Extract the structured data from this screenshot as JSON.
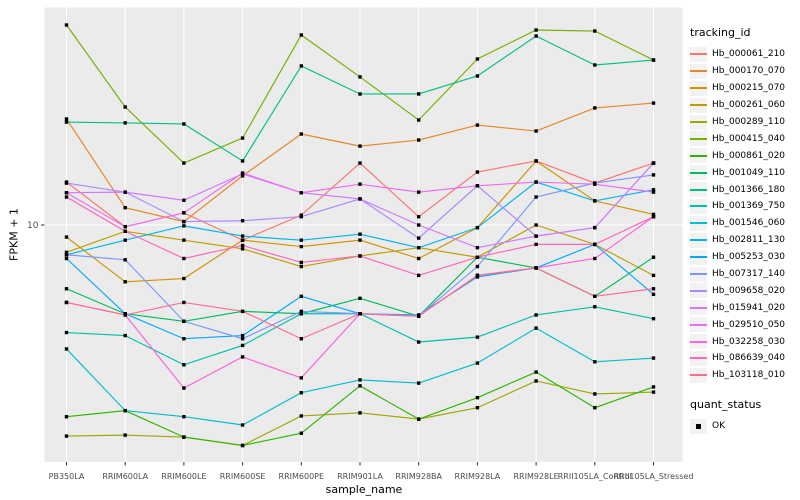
{
  "axes": {
    "x_title": "sample_name",
    "y_title": "FPKM + 1",
    "y_tick": "10"
  },
  "legend": {
    "tracking_title": "tracking_id",
    "quant_title": "quant_status",
    "quant_items": [
      {
        "label": "OK"
      }
    ]
  },
  "colors": {
    "panel_bg": "#EBEBEB",
    "grid": "#FFFFFF",
    "tick_text": "#4D4D4D",
    "tick_mark": "#333333",
    "point": "#000000"
  },
  "chart_data": {
    "type": "line",
    "title": "",
    "xlabel": "sample_name",
    "ylabel": "FPKM + 1",
    "y_scale": "log10",
    "y_axis_tick_labels": [
      "10"
    ],
    "y_axis_tick_value": 10,
    "approx_y_range": [
      0.65,
      125
    ],
    "grid": "major-white-on-grey",
    "legend_position": "right",
    "point_shape": "filled-black-square",
    "categories": [
      "PB350LA",
      "RRIM600LA",
      "RRIM600LE",
      "RRIM600SE",
      "RRIM600PE",
      "RRIM901LA",
      "RRIM928BA",
      "RRIM928LA",
      "RRIM928LE",
      "RRII105LA_Control",
      "RRII105LA_Stressed"
    ],
    "quant_status_all": "OK",
    "series": [
      {
        "tracking_id": "Hb_000061_210",
        "color": "#F8766D",
        "values": [
          16.4,
          9.8,
          11.5,
          8.4,
          11.2,
          20.4,
          11.0,
          18.4,
          20.9,
          16.2,
          20.4
        ]
      },
      {
        "tracking_id": "Hb_000170_070",
        "color": "#E88526",
        "values": [
          33.9,
          12.2,
          10.4,
          17.6,
          28.5,
          24.8,
          26.6,
          31.6,
          29.5,
          38.5,
          40.7
        ]
      },
      {
        "tracking_id": "Hb_000215_070",
        "color": "#D39200",
        "values": [
          8.7,
          5.2,
          5.4,
          8.4,
          7.8,
          8.4,
          6.8,
          9.7,
          20.9,
          13.2,
          11.3
        ]
      },
      {
        "tracking_id": "Hb_000261_060",
        "color": "#BB9D00",
        "values": [
          7.3,
          9.3,
          8.4,
          7.6,
          6.2,
          7.0,
          7.7,
          6.9,
          10.0,
          8.0,
          5.6
        ]
      },
      {
        "tracking_id": "Hb_000289_110",
        "color": "#9DA700",
        "values": [
          0.88,
          0.89,
          0.87,
          0.79,
          1.11,
          1.15,
          1.07,
          1.22,
          1.66,
          1.43,
          1.46
        ]
      },
      {
        "tracking_id": "Hb_000415_040",
        "color": "#75B000",
        "values": [
          100.0,
          38.9,
          20.4,
          27.2,
          89.1,
          55.0,
          33.5,
          67.6,
          94.4,
          93.3,
          66.8
        ]
      },
      {
        "tracking_id": "Hb_000861_020",
        "color": "#2FB600",
        "values": [
          1.1,
          1.18,
          0.87,
          0.79,
          0.91,
          1.57,
          1.07,
          1.37,
          1.84,
          1.22,
          1.55
        ]
      },
      {
        "tracking_id": "Hb_001049_110",
        "color": "#00BB57",
        "values": [
          4.8,
          3.6,
          3.3,
          3.7,
          3.6,
          4.3,
          3.5,
          6.9,
          6.1,
          4.4,
          6.9
        ]
      },
      {
        "tracking_id": "Hb_001366_180",
        "color": "#00BF85",
        "values": [
          32.7,
          32.4,
          32.0,
          20.9,
          62.4,
          45.2,
          45.2,
          55.6,
          88.1,
          63.1,
          66.8
        ]
      },
      {
        "tracking_id": "Hb_001369_750",
        "color": "#00C0AC",
        "values": [
          2.9,
          2.8,
          2.0,
          2.5,
          3.6,
          3.6,
          2.6,
          2.75,
          3.55,
          3.9,
          3.4
        ]
      },
      {
        "tracking_id": "Hb_001546_060",
        "color": "#00BDD0",
        "values": [
          2.4,
          1.18,
          1.1,
          1.0,
          1.45,
          1.68,
          1.62,
          2.04,
          3.05,
          2.07,
          2.16
        ]
      },
      {
        "tracking_id": "Hb_002811_130",
        "color": "#00B5EC",
        "values": [
          7.1,
          8.4,
          9.9,
          8.8,
          8.4,
          9.0,
          7.7,
          9.7,
          16.4,
          13.2,
          15.0
        ]
      },
      {
        "tracking_id": "Hb_005253_030",
        "color": "#00A7FF",
        "values": [
          6.8,
          3.6,
          2.7,
          2.8,
          4.4,
          3.6,
          3.55,
          5.5,
          6.1,
          8.0,
          4.5
        ]
      },
      {
        "tracking_id": "Hb_007317_140",
        "color": "#7997FF",
        "values": [
          7.1,
          6.7,
          3.3,
          2.7,
          3.7,
          3.6,
          3.5,
          6.2,
          13.8,
          16.2,
          17.8
        ]
      },
      {
        "tracking_id": "Hb_009658_020",
        "color": "#AC88FF",
        "values": [
          16.2,
          14.6,
          10.4,
          10.5,
          11.0,
          13.5,
          8.6,
          15.7,
          8.8,
          9.7,
          20.4
        ]
      },
      {
        "tracking_id": "Hb_015941_020",
        "color": "#D277FF",
        "values": [
          14.5,
          14.6,
          13.3,
          18.0,
          14.5,
          13.5,
          10.0,
          7.7,
          8.8,
          9.7,
          20.4
        ]
      },
      {
        "tracking_id": "Hb_029510_050",
        "color": "#ED6DF1",
        "values": [
          14.5,
          9.8,
          11.5,
          18.2,
          14.5,
          16.0,
          14.6,
          15.7,
          16.4,
          16.0,
          14.6
        ]
      },
      {
        "tracking_id": "Hb_032258_030",
        "color": "#FF61DB",
        "values": [
          4.1,
          3.55,
          1.53,
          2.19,
          1.72,
          3.6,
          3.5,
          5.6,
          6.1,
          6.8,
          11.0
        ]
      },
      {
        "tracking_id": "Hb_086639_040",
        "color": "#FF65B9",
        "values": [
          13.8,
          9.3,
          6.8,
          7.9,
          6.5,
          7.0,
          5.6,
          6.9,
          8.0,
          8.0,
          11.0
        ]
      },
      {
        "tracking_id": "Hb_103118_010",
        "color": "#FF6C91",
        "values": [
          4.1,
          3.55,
          4.1,
          3.7,
          2.7,
          3.6,
          3.5,
          5.6,
          6.1,
          4.4,
          4.8
        ]
      }
    ]
  }
}
